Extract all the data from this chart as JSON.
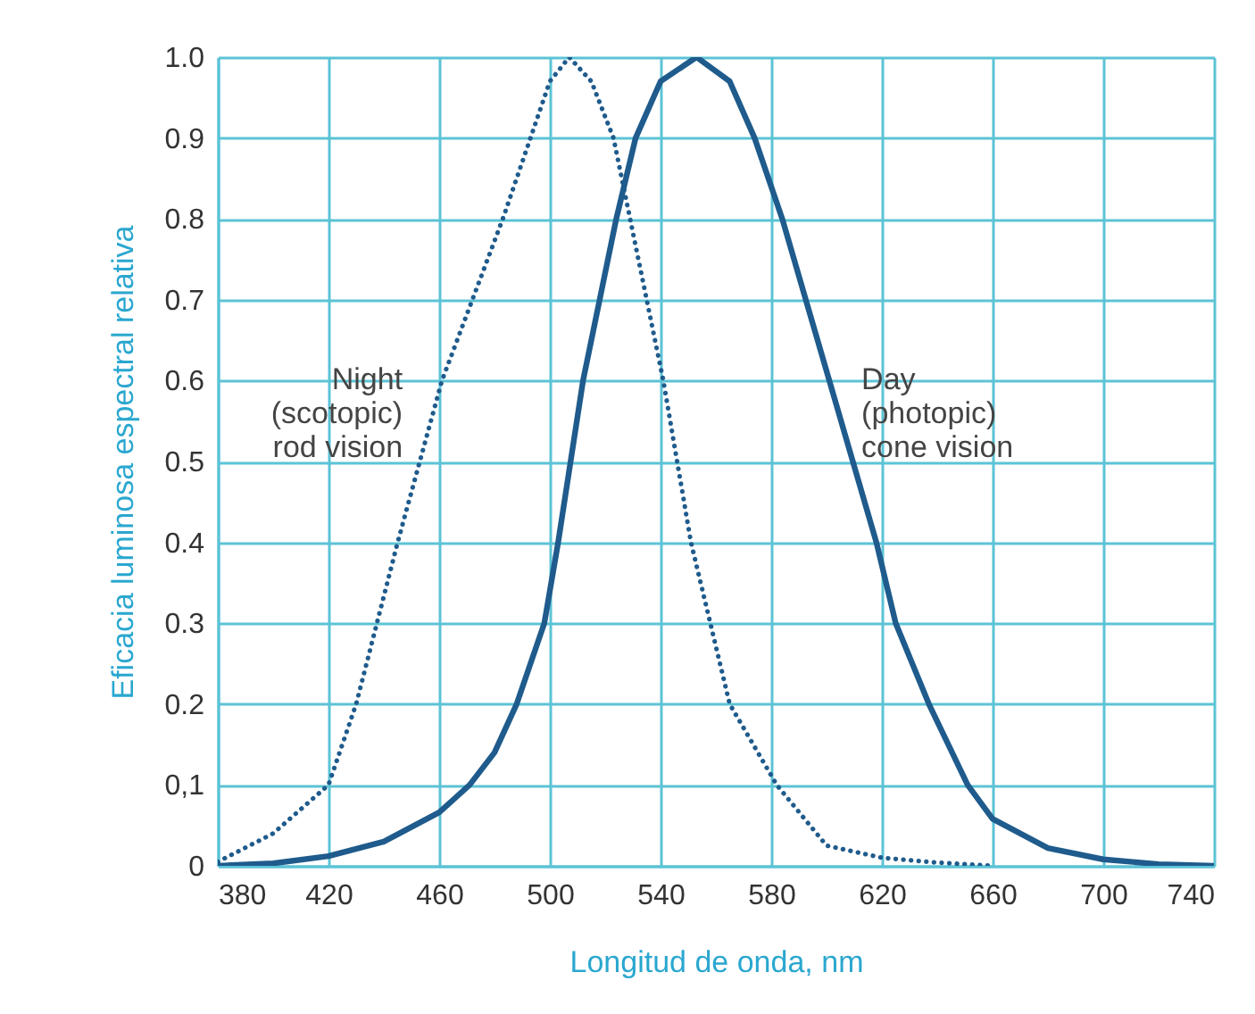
{
  "chart_data": {
    "type": "line",
    "xlabel": "Longitud de onda, nm",
    "ylabel": "Eficacia luminosa espectral relativa",
    "xlim": [
      380,
      740
    ],
    "xticks": [
      380,
      420,
      460,
      500,
      540,
      580,
      620,
      660,
      700,
      740
    ],
    "ylim": [
      0,
      1
    ],
    "yticks": [
      0,
      {
        "value": 0.1,
        "label": "0,1"
      },
      0.2,
      0.3,
      0.4,
      0.5,
      0.6,
      0.7,
      0.8,
      0.9,
      {
        "value": 1,
        "label": "1.0"
      }
    ],
    "grid": true,
    "series": [
      {
        "name": "Night\n(scotopic)\nrod vision",
        "color": "#1f5b8c",
        "line_style": "dotted",
        "x": [
          380,
          400,
          420,
          430,
          445,
          461,
          483,
          493,
          500,
          507,
          515,
          523,
          529,
          541,
          551,
          565,
          582,
          600,
          620,
          640,
          660
        ],
        "values": [
          0.005,
          0.04,
          0.1,
          0.2,
          0.4,
          0.6,
          0.8,
          0.9,
          0.97,
          1,
          0.97,
          0.9,
          0.8,
          0.6,
          0.4,
          0.2,
          0.1,
          0.025,
          0.01,
          0.004,
          0
        ]
      },
      {
        "name": "Day\n(photopic)\ncone vision",
        "color": "#1f5b8c",
        "line_style": "solid",
        "x": [
          380,
          400,
          420,
          440,
          460,
          471,
          480,
          488,
          498,
          503,
          512,
          524,
          531,
          540,
          553,
          565,
          574,
          584,
          601,
          618,
          625,
          637,
          651,
          660,
          680,
          700,
          720,
          740
        ],
        "values": [
          0,
          0.003,
          0.012,
          0.03,
          0.066,
          0.1,
          0.14,
          0.2,
          0.3,
          0.4,
          0.6,
          0.8,
          0.9,
          0.97,
          1,
          0.97,
          0.9,
          0.8,
          0.6,
          0.4,
          0.3,
          0.2,
          0.1,
          0.058,
          0.022,
          0.008,
          0.002,
          0
        ]
      }
    ]
  }
}
